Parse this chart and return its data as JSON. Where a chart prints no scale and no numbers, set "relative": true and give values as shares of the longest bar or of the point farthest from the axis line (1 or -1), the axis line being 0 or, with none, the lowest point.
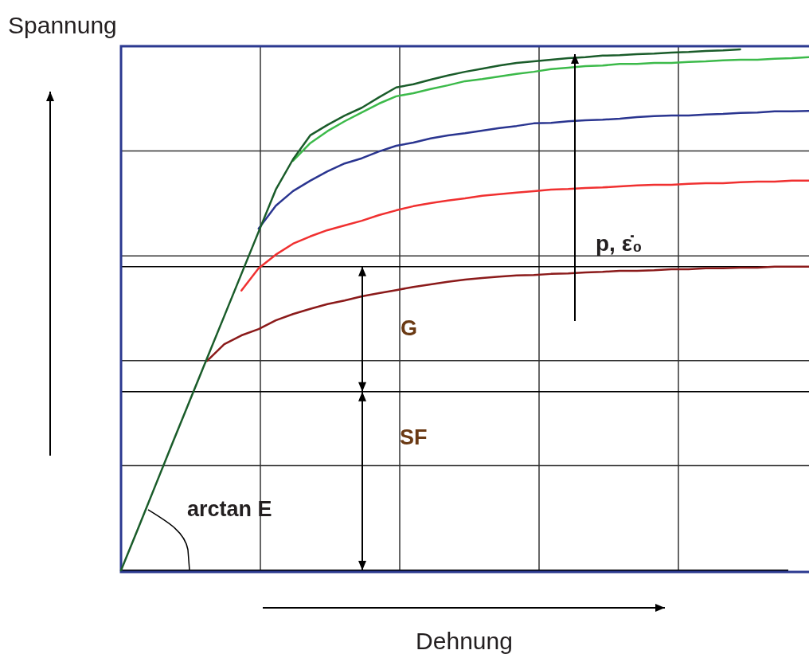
{
  "chart_data": {
    "type": "line",
    "xlabel": "Dehnung",
    "ylabel": "Spannung",
    "relative": true,
    "grid": true,
    "legend": false,
    "marker": "none",
    "line_style": "solid",
    "categories": [
      null,
      null,
      null,
      null,
      null,
      null,
      null,
      null,
      null,
      null,
      null,
      null,
      null,
      null,
      null,
      null,
      null,
      null,
      null,
      null,
      null,
      null,
      null,
      null,
      null,
      null,
      null,
      null,
      null,
      null,
      null,
      null,
      null,
      null,
      null,
      null,
      null,
      null,
      null,
      null,
      null
    ],
    "series": [
      {
        "color": "#8b1a1a",
        "values": [
          null,
          null,
          null,
          null,
          null,
          0.402,
          0.434,
          0.451,
          0.463,
          0.48,
          0.492,
          0.502,
          0.511,
          0.518,
          0.526,
          0.532,
          0.538,
          0.544,
          0.549,
          0.554,
          0.558,
          0.561,
          0.564,
          0.566,
          0.567,
          0.569,
          0.57,
          0.572,
          0.573,
          0.575,
          0.575,
          0.576,
          0.578,
          0.578,
          0.58,
          0.58,
          0.581,
          0.581,
          0.583,
          0.583,
          0.583
        ]
      },
      {
        "color": "#f03030",
        "values": [
          null,
          null,
          null,
          null,
          null,
          null,
          null,
          0.537,
          0.58,
          0.606,
          0.627,
          0.641,
          0.653,
          0.662,
          0.671,
          0.682,
          0.691,
          0.699,
          0.705,
          0.71,
          0.714,
          0.719,
          0.722,
          0.725,
          0.728,
          0.731,
          0.732,
          0.734,
          0.735,
          0.737,
          0.739,
          0.74,
          0.74,
          0.742,
          0.743,
          0.743,
          0.745,
          0.746,
          0.746,
          0.748,
          0.748
        ]
      },
      {
        "color": "#2a3590",
        "values": [
          null,
          null,
          null,
          null,
          null,
          null,
          null,
          null,
          0.656,
          0.7,
          0.728,
          0.748,
          0.766,
          0.781,
          0.791,
          0.804,
          0.815,
          0.821,
          0.829,
          0.835,
          0.839,
          0.844,
          0.849,
          0.853,
          0.858,
          0.859,
          0.862,
          0.864,
          0.865,
          0.867,
          0.87,
          0.872,
          0.873,
          0.873,
          0.875,
          0.876,
          0.878,
          0.879,
          0.881,
          0.881,
          0.882
        ]
      },
      {
        "color": "#3cba4a",
        "values": [
          null,
          null,
          null,
          null,
          null,
          null,
          null,
          null,
          null,
          null,
          0.786,
          0.82,
          0.843,
          0.862,
          0.879,
          0.896,
          0.91,
          0.916,
          0.924,
          0.931,
          0.939,
          0.943,
          0.948,
          0.953,
          0.957,
          0.962,
          0.965,
          0.968,
          0.969,
          0.972,
          0.972,
          0.974,
          0.974,
          0.976,
          0.977,
          0.979,
          0.98,
          0.98,
          0.982,
          0.983,
          0.985
        ]
      },
      {
        "color": "#1a5c2a",
        "values": [
          0,
          0.081,
          0.163,
          0.245,
          0.326,
          0.407,
          0.488,
          0.569,
          0.65,
          0.731,
          0.789,
          0.835,
          0.855,
          0.873,
          0.888,
          0.908,
          0.927,
          0.933,
          0.942,
          0.95,
          0.957,
          0.963,
          0.969,
          0.974,
          0.977,
          0.98,
          0.983,
          0.985,
          0.988,
          0.989,
          0.991,
          0.992,
          0.994,
          0.995,
          0.997,
          0.998,
          1,
          null,
          null,
          null,
          null
        ]
      }
    ],
    "ref_lines": [
      {
        "axis": "y",
        "value": 0.343,
        "color": "#000000"
      },
      {
        "axis": "y",
        "value": 0.583,
        "color": "#000000"
      }
    ],
    "annotations": [
      "arctan E",
      "G",
      "SF",
      "p, ε̇₀"
    ]
  }
}
